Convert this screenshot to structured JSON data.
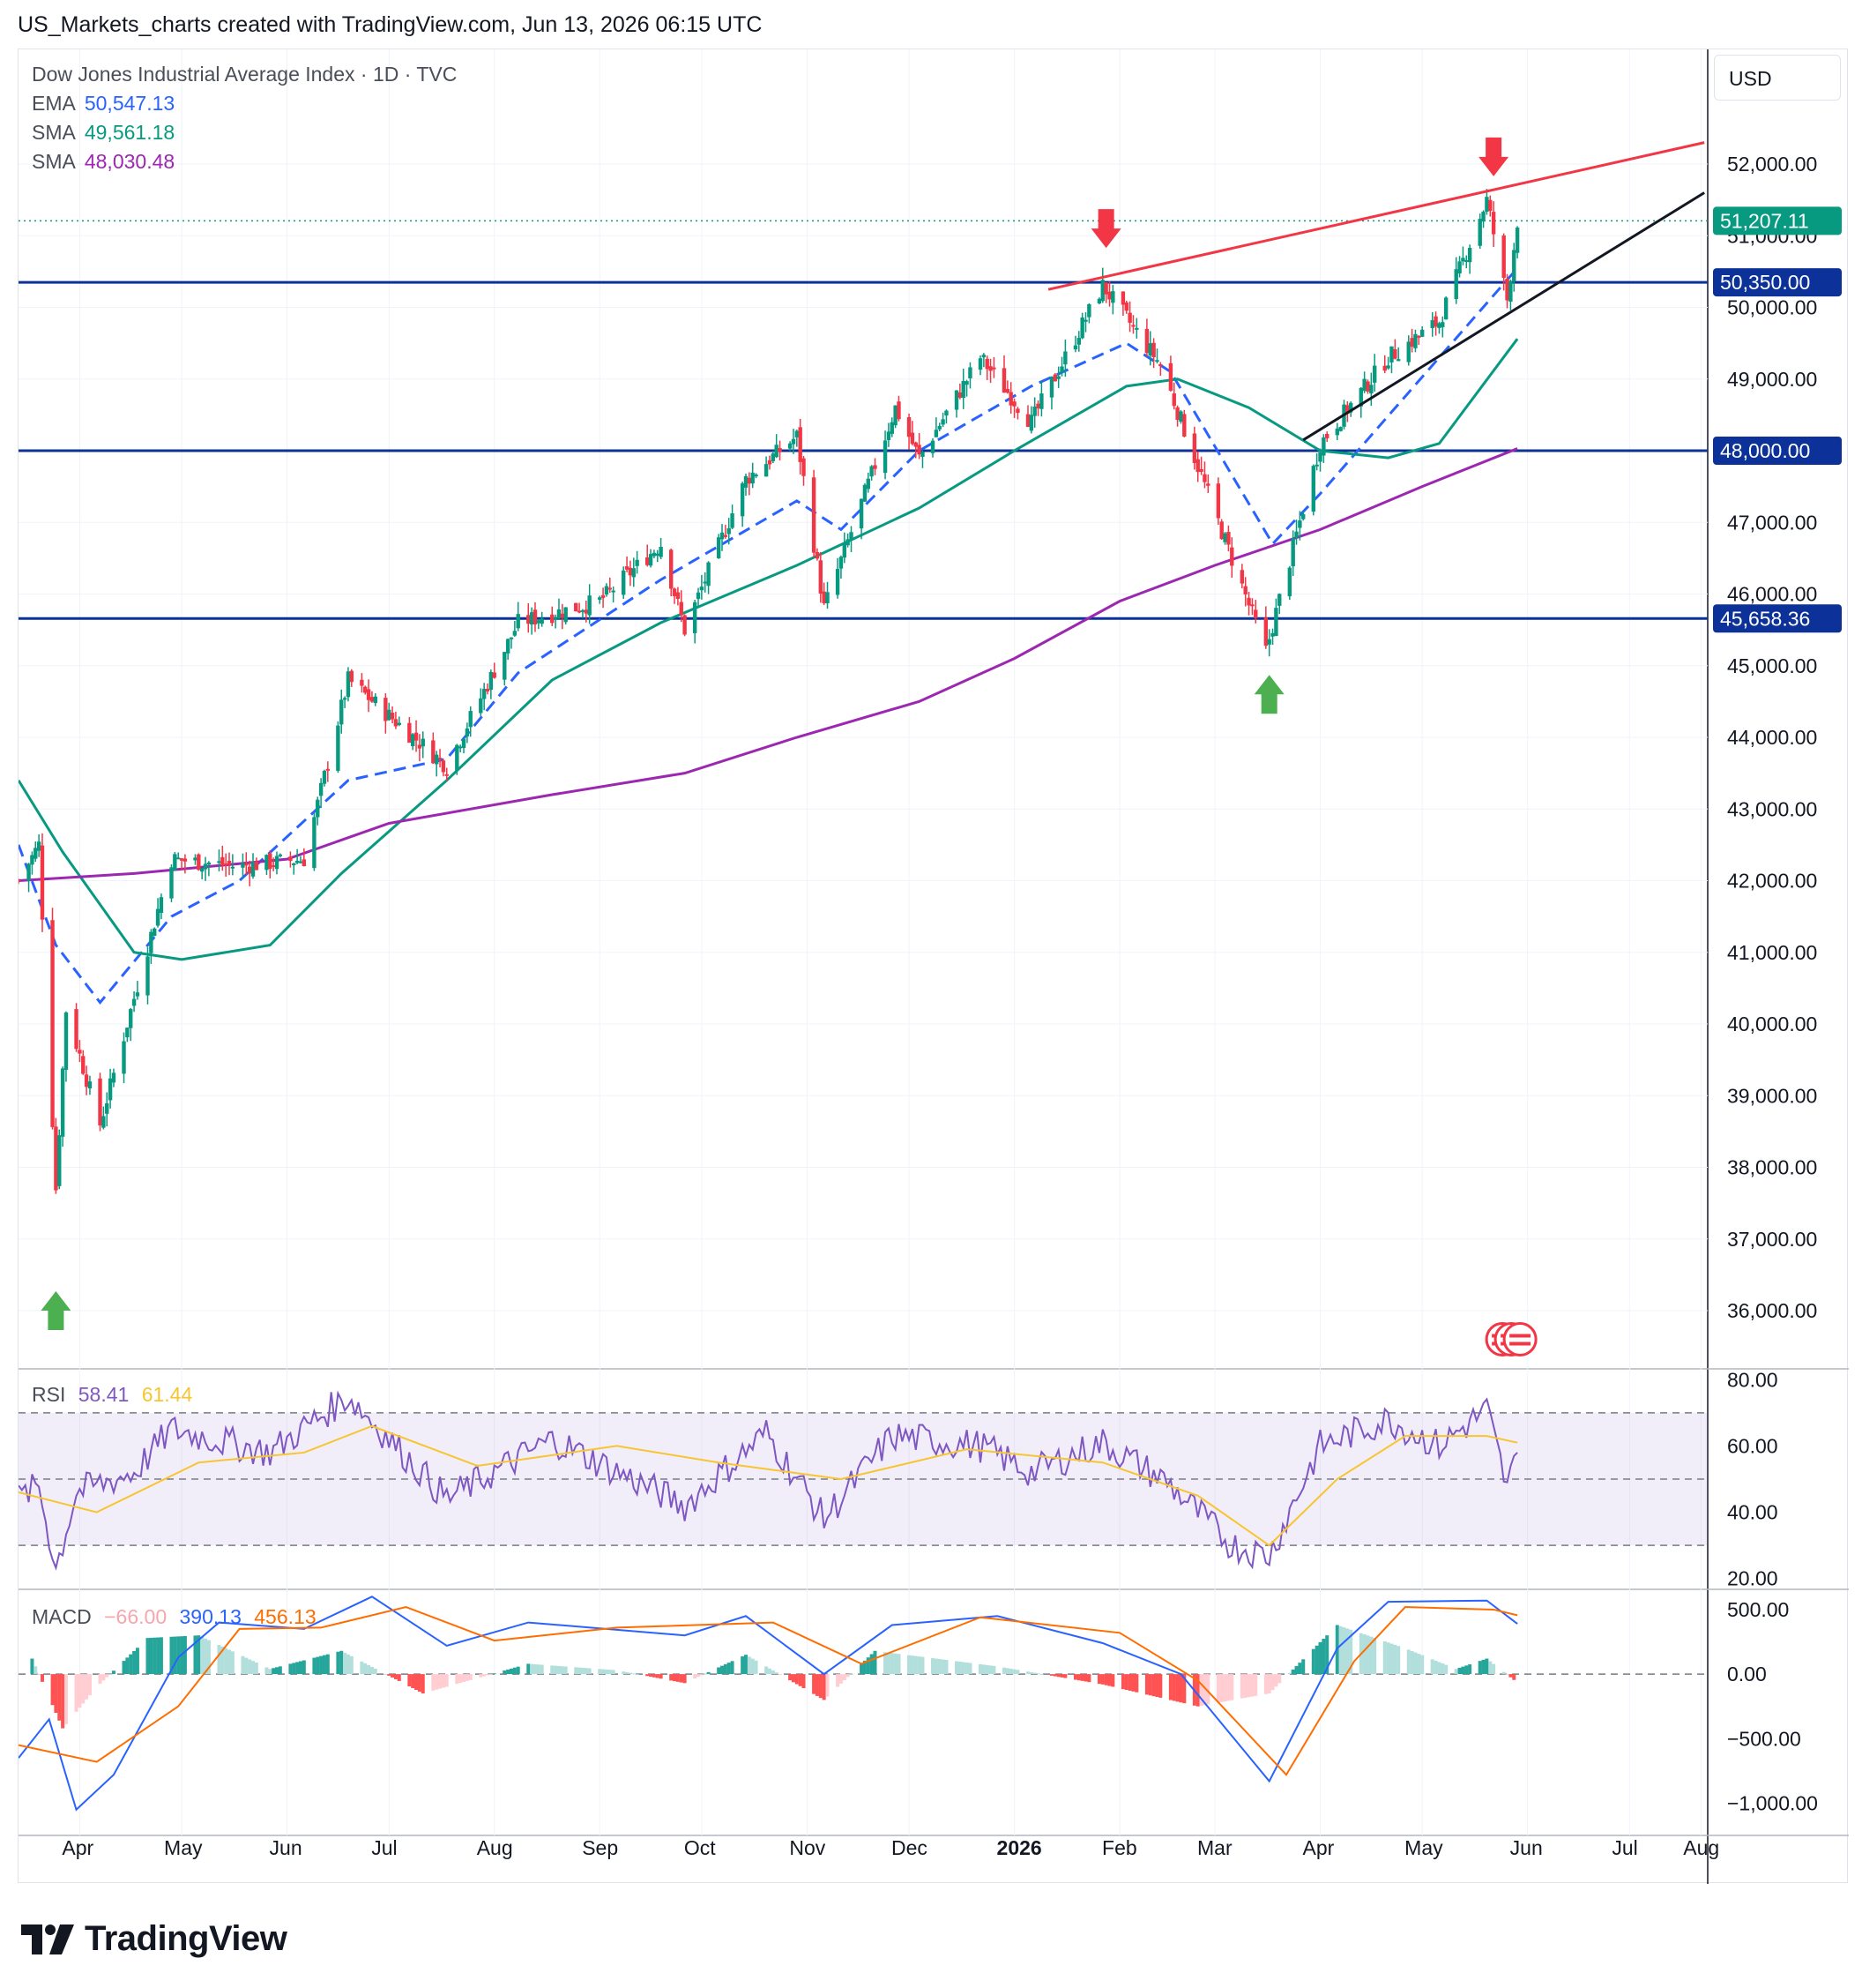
{
  "header": "US_Markets_charts created with TradingView.com, Jun 13, 2026 06:15 UTC",
  "symbol_line": "Dow Jones Industrial Average Index · 1D · TVC",
  "currency": "USD",
  "indicators": [
    {
      "name": "EMA",
      "value": "50,547.13",
      "color": "#2962ff"
    },
    {
      "name": "SMA",
      "value": "49,561.18",
      "color": "#089981"
    },
    {
      "name": "SMA",
      "value": "48,030.48",
      "color": "#9c27b0"
    }
  ],
  "rsi": {
    "label": "RSI",
    "value": "58.41",
    "ma_value": "61.44",
    "color": "#7e57c2",
    "ma_color": "#f7c531"
  },
  "macd": {
    "label": "MACD",
    "hist_value": "−66.00",
    "macd_value": "390.13",
    "signal_value": "456.13"
  },
  "footer_brand": "TradingView",
  "chart_data": {
    "type": "candlestick",
    "title": "Dow Jones Industrial Average Index · 1D · TVC",
    "ylim": [
      35200,
      53600
    ],
    "price_ticks": [
      "52,000.00",
      "51,000.00",
      "50,000.00",
      "49,000.00",
      "48,000.00",
      "47,000.00",
      "46,000.00",
      "45,000.00",
      "44,000.00",
      "43,000.00",
      "42,000.00",
      "41,000.00",
      "40,000.00",
      "39,000.00",
      "38,000.00",
      "37,000.00",
      "36,000.00"
    ],
    "price_tick_values": [
      52000,
      51000,
      50000,
      49000,
      48000,
      47000,
      46000,
      45000,
      44000,
      43000,
      42000,
      41000,
      40000,
      39000,
      38000,
      37000,
      36000
    ],
    "time_labels": [
      "Apr",
      "May",
      "Jun",
      "Jul",
      "Aug",
      "Sep",
      "Oct",
      "Nov",
      "Dec",
      "2026",
      "Feb",
      "Mar",
      "Apr",
      "May",
      "Jun",
      "Jul",
      "Aug"
    ],
    "last_price": {
      "value": 51207.11,
      "label": "51,207.11"
    },
    "horizontal_levels": [
      {
        "value": 50350,
        "label": "50,350.00"
      },
      {
        "value": 48000,
        "label": "48,000.00"
      },
      {
        "value": 45658.36,
        "label": "45,658.36"
      }
    ],
    "price_path": [
      {
        "date": "2025-03-28",
        "value": 42000
      },
      {
        "date": "2025-04-03",
        "value": 42500
      },
      {
        "date": "2025-04-08",
        "value": 37700
      },
      {
        "date": "2025-04-11",
        "value": 40200
      },
      {
        "date": "2025-04-21",
        "value": 38600
      },
      {
        "date": "2025-05-12",
        "value": 42300
      },
      {
        "date": "2025-06-01",
        "value": 42200
      },
      {
        "date": "2025-06-20",
        "value": 42300
      },
      {
        "date": "2025-07-03",
        "value": 44800
      },
      {
        "date": "2025-08-01",
        "value": 43600
      },
      {
        "date": "2025-08-22",
        "value": 45600
      },
      {
        "date": "2025-09-15",
        "value": 45900
      },
      {
        "date": "2025-10-03",
        "value": 46700
      },
      {
        "date": "2025-10-10",
        "value": 45500
      },
      {
        "date": "2025-10-28",
        "value": 47600
      },
      {
        "date": "2025-11-12",
        "value": 48200
      },
      {
        "date": "2025-11-20",
        "value": 45800
      },
      {
        "date": "2025-12-11",
        "value": 48600
      },
      {
        "date": "2025-12-18",
        "value": 47900
      },
      {
        "date": "2026-01-05",
        "value": 49300
      },
      {
        "date": "2026-01-20",
        "value": 48400
      },
      {
        "date": "2026-02-10",
        "value": 50300
      },
      {
        "date": "2026-02-27",
        "value": 49200
      },
      {
        "date": "2026-03-30",
        "value": 45200
      },
      {
        "date": "2026-04-15",
        "value": 48100
      },
      {
        "date": "2026-05-05",
        "value": 49300
      },
      {
        "date": "2026-05-20",
        "value": 49800
      },
      {
        "date": "2026-06-03",
        "value": 51500
      },
      {
        "date": "2026-06-09",
        "value": 50100
      },
      {
        "date": "2026-06-12",
        "value": 51207
      }
    ],
    "series": [
      {
        "name": "EMA",
        "color": "#2962ff",
        "dashed": true,
        "values": [
          {
            "date": "2025-03-28",
            "value": 42500
          },
          {
            "date": "2025-04-08",
            "value": 41100
          },
          {
            "date": "2025-04-21",
            "value": 40300
          },
          {
            "date": "2025-05-12",
            "value": 41500
          },
          {
            "date": "2025-06-01",
            "value": 42000
          },
          {
            "date": "2025-07-03",
            "value": 43400
          },
          {
            "date": "2025-08-01",
            "value": 43700
          },
          {
            "date": "2025-08-22",
            "value": 44900
          },
          {
            "date": "2025-10-03",
            "value": 46200
          },
          {
            "date": "2025-11-12",
            "value": 47300
          },
          {
            "date": "2025-11-25",
            "value": 46900
          },
          {
            "date": "2025-12-18",
            "value": 48000
          },
          {
            "date": "2026-01-20",
            "value": 48900
          },
          {
            "date": "2026-02-17",
            "value": 49500
          },
          {
            "date": "2026-03-02",
            "value": 49100
          },
          {
            "date": "2026-04-01",
            "value": 46700
          },
          {
            "date": "2026-04-15",
            "value": 47400
          },
          {
            "date": "2026-05-20",
            "value": 49300
          },
          {
            "date": "2026-06-12",
            "value": 50547
          }
        ]
      },
      {
        "name": "SMA",
        "color": "#089981",
        "dashed": false,
        "values": [
          {
            "date": "2025-03-28",
            "value": 43400
          },
          {
            "date": "2025-04-10",
            "value": 42400
          },
          {
            "date": "2025-05-01",
            "value": 41000
          },
          {
            "date": "2025-05-15",
            "value": 40900
          },
          {
            "date": "2025-06-10",
            "value": 41100
          },
          {
            "date": "2025-07-01",
            "value": 42100
          },
          {
            "date": "2025-08-01",
            "value": 43400
          },
          {
            "date": "2025-09-01",
            "value": 44800
          },
          {
            "date": "2025-10-03",
            "value": 45600
          },
          {
            "date": "2025-11-12",
            "value": 46400
          },
          {
            "date": "2025-12-18",
            "value": 47200
          },
          {
            "date": "2026-01-15",
            "value": 48000
          },
          {
            "date": "2026-02-17",
            "value": 48900
          },
          {
            "date": "2026-03-04",
            "value": 49000
          },
          {
            "date": "2026-03-25",
            "value": 48600
          },
          {
            "date": "2026-04-15",
            "value": 48000
          },
          {
            "date": "2026-05-05",
            "value": 47900
          },
          {
            "date": "2026-05-20",
            "value": 48100
          },
          {
            "date": "2026-06-12",
            "value": 49561
          }
        ]
      },
      {
        "name": "SMA",
        "color": "#9c27b0",
        "dashed": false,
        "values": [
          {
            "date": "2025-03-28",
            "value": 42000
          },
          {
            "date": "2025-05-01",
            "value": 42100
          },
          {
            "date": "2025-06-15",
            "value": 42300
          },
          {
            "date": "2025-07-15",
            "value": 42800
          },
          {
            "date": "2025-09-01",
            "value": 43200
          },
          {
            "date": "2025-10-10",
            "value": 43500
          },
          {
            "date": "2025-11-12",
            "value": 44000
          },
          {
            "date": "2025-12-18",
            "value": 44500
          },
          {
            "date": "2026-01-15",
            "value": 45100
          },
          {
            "date": "2026-02-15",
            "value": 45900
          },
          {
            "date": "2026-03-15",
            "value": 46400
          },
          {
            "date": "2026-04-15",
            "value": 46900
          },
          {
            "date": "2026-05-15",
            "value": 47500
          },
          {
            "date": "2026-06-12",
            "value": 48030
          }
        ]
      }
    ],
    "trendlines": [
      {
        "color": "#f23645",
        "from": {
          "date": "2026-01-25",
          "value": 50250
        },
        "to": {
          "date": "2026-08-06",
          "value": 52300
        }
      },
      {
        "color": "#131722",
        "from": {
          "date": "2026-04-10",
          "value": 48150
        },
        "to": {
          "date": "2026-08-06",
          "value": 51600
        }
      }
    ],
    "markers": [
      {
        "type": "down",
        "color": "#f23645",
        "date": "2026-02-11",
        "value": 51100
      },
      {
        "type": "down",
        "color": "#f23645",
        "date": "2026-06-05",
        "value": 52100
      },
      {
        "type": "up",
        "color": "#4caf50",
        "date": "2026-03-31",
        "value": 44600
      },
      {
        "type": "up",
        "color": "#4caf50",
        "date": "2025-04-08",
        "value": 36000
      }
    ],
    "rsi_pane": {
      "ylim": [
        17,
        83
      ],
      "ticks": [
        "80.00",
        "60.00",
        "40.00",
        "20.00"
      ],
      "tick_values": [
        80,
        60,
        40,
        20
      ],
      "band": [
        30,
        70
      ],
      "mid": 50,
      "rsi": [
        {
          "date": "2025-03-28",
          "value": 44
        },
        {
          "date": "2025-04-03",
          "value": 48
        },
        {
          "date": "2025-04-08",
          "value": 23
        },
        {
          "date": "2025-04-14",
          "value": 46
        },
        {
          "date": "2025-05-01",
          "value": 52
        },
        {
          "date": "2025-05-12",
          "value": 65
        },
        {
          "date": "2025-06-10",
          "value": 58
        },
        {
          "date": "2025-07-03",
          "value": 75
        },
        {
          "date": "2025-08-01",
          "value": 44
        },
        {
          "date": "2025-09-01",
          "value": 62
        },
        {
          "date": "2025-10-10",
          "value": 42
        },
        {
          "date": "2025-11-03",
          "value": 64
        },
        {
          "date": "2025-11-20",
          "value": 38
        },
        {
          "date": "2025-12-10",
          "value": 63
        },
        {
          "date": "2026-01-05",
          "value": 60
        },
        {
          "date": "2026-01-20",
          "value": 52
        },
        {
          "date": "2026-02-10",
          "value": 61
        },
        {
          "date": "2026-03-01",
          "value": 49
        },
        {
          "date": "2026-03-20",
          "value": 30
        },
        {
          "date": "2026-03-31",
          "value": 27
        },
        {
          "date": "2026-04-15",
          "value": 60
        },
        {
          "date": "2026-05-05",
          "value": 68
        },
        {
          "date": "2026-05-20",
          "value": 60
        },
        {
          "date": "2026-06-03",
          "value": 71
        },
        {
          "date": "2026-06-09",
          "value": 47
        },
        {
          "date": "2026-06-12",
          "value": 58
        }
      ],
      "ma": [
        {
          "date": "2025-03-28",
          "value": 46
        },
        {
          "date": "2025-04-20",
          "value": 40
        },
        {
          "date": "2025-05-20",
          "value": 55
        },
        {
          "date": "2025-06-20",
          "value": 58
        },
        {
          "date": "2025-07-10",
          "value": 66
        },
        {
          "date": "2025-08-10",
          "value": 54
        },
        {
          "date": "2025-09-20",
          "value": 60
        },
        {
          "date": "2025-10-20",
          "value": 55
        },
        {
          "date": "2025-11-25",
          "value": 50
        },
        {
          "date": "2026-01-01",
          "value": 59
        },
        {
          "date": "2026-02-10",
          "value": 55
        },
        {
          "date": "2026-03-10",
          "value": 45
        },
        {
          "date": "2026-03-31",
          "value": 30
        },
        {
          "date": "2026-04-20",
          "value": 50
        },
        {
          "date": "2026-05-10",
          "value": 63
        },
        {
          "date": "2026-06-03",
          "value": 63
        },
        {
          "date": "2026-06-12",
          "value": 61
        }
      ]
    },
    "macd_pane": {
      "ylim": [
        -1250,
        650
      ],
      "ticks": [
        "500.00",
        "0.00",
        "−500.00",
        "−1,000.00"
      ],
      "tick_values": [
        500,
        0,
        -500,
        -1000
      ],
      "macd": [
        {
          "date": "2025-03-28",
          "value": -650
        },
        {
          "date": "2025-04-06",
          "value": -350
        },
        {
          "date": "2025-04-14",
          "value": -1050
        },
        {
          "date": "2025-04-25",
          "value": -780
        },
        {
          "date": "2025-05-14",
          "value": 130
        },
        {
          "date": "2025-05-26",
          "value": 400
        },
        {
          "date": "2025-06-20",
          "value": 350
        },
        {
          "date": "2025-07-10",
          "value": 600
        },
        {
          "date": "2025-08-01",
          "value": 220
        },
        {
          "date": "2025-08-25",
          "value": 400
        },
        {
          "date": "2025-10-10",
          "value": 300
        },
        {
          "date": "2025-10-28",
          "value": 450
        },
        {
          "date": "2025-11-20",
          "value": 0
        },
        {
          "date": "2025-12-10",
          "value": 380
        },
        {
          "date": "2026-01-10",
          "value": 450
        },
        {
          "date": "2026-02-10",
          "value": 240
        },
        {
          "date": "2026-03-05",
          "value": 0
        },
        {
          "date": "2026-03-31",
          "value": -830
        },
        {
          "date": "2026-04-20",
          "value": 200
        },
        {
          "date": "2026-05-05",
          "value": 560
        },
        {
          "date": "2026-06-03",
          "value": 570
        },
        {
          "date": "2026-06-12",
          "value": 390
        }
      ],
      "signal": [
        {
          "date": "2025-03-28",
          "value": -550
        },
        {
          "date": "2025-04-20",
          "value": -680
        },
        {
          "date": "2025-05-14",
          "value": -250
        },
        {
          "date": "2025-06-01",
          "value": 350
        },
        {
          "date": "2025-06-25",
          "value": 360
        },
        {
          "date": "2025-07-20",
          "value": 520
        },
        {
          "date": "2025-08-15",
          "value": 260
        },
        {
          "date": "2025-09-20",
          "value": 360
        },
        {
          "date": "2025-11-05",
          "value": 400
        },
        {
          "date": "2025-12-01",
          "value": 80
        },
        {
          "date": "2026-01-05",
          "value": 440
        },
        {
          "date": "2026-02-15",
          "value": 320
        },
        {
          "date": "2026-03-10",
          "value": -50
        },
        {
          "date": "2026-04-05",
          "value": -780
        },
        {
          "date": "2026-04-25",
          "value": 100
        },
        {
          "date": "2026-05-10",
          "value": 520
        },
        {
          "date": "2026-06-05",
          "value": 500
        },
        {
          "date": "2026-06-12",
          "value": 456
        }
      ],
      "histogram": [
        {
          "date": "2025-04-01",
          "value": 120
        },
        {
          "date": "2025-04-10",
          "value": -420
        },
        {
          "date": "2025-04-20",
          "value": -100
        },
        {
          "date": "2025-05-05",
          "value": 280
        },
        {
          "date": "2025-05-20",
          "value": 300
        },
        {
          "date": "2025-06-10",
          "value": 40
        },
        {
          "date": "2025-07-01",
          "value": 180
        },
        {
          "date": "2025-07-25",
          "value": -150
        },
        {
          "date": "2025-08-25",
          "value": 80
        },
        {
          "date": "2025-09-20",
          "value": 30
        },
        {
          "date": "2025-10-10",
          "value": -70
        },
        {
          "date": "2025-10-28",
          "value": 150
        },
        {
          "date": "2025-11-20",
          "value": -200
        },
        {
          "date": "2025-12-05",
          "value": 180
        },
        {
          "date": "2026-01-10",
          "value": 60
        },
        {
          "date": "2026-02-10",
          "value": -80
        },
        {
          "date": "2026-03-10",
          "value": -250
        },
        {
          "date": "2026-03-31",
          "value": -150
        },
        {
          "date": "2026-04-20",
          "value": 380
        },
        {
          "date": "2026-05-10",
          "value": 200
        },
        {
          "date": "2026-05-25",
          "value": 40
        },
        {
          "date": "2026-06-03",
          "value": 120
        },
        {
          "date": "2026-06-12",
          "value": -66
        }
      ]
    }
  }
}
